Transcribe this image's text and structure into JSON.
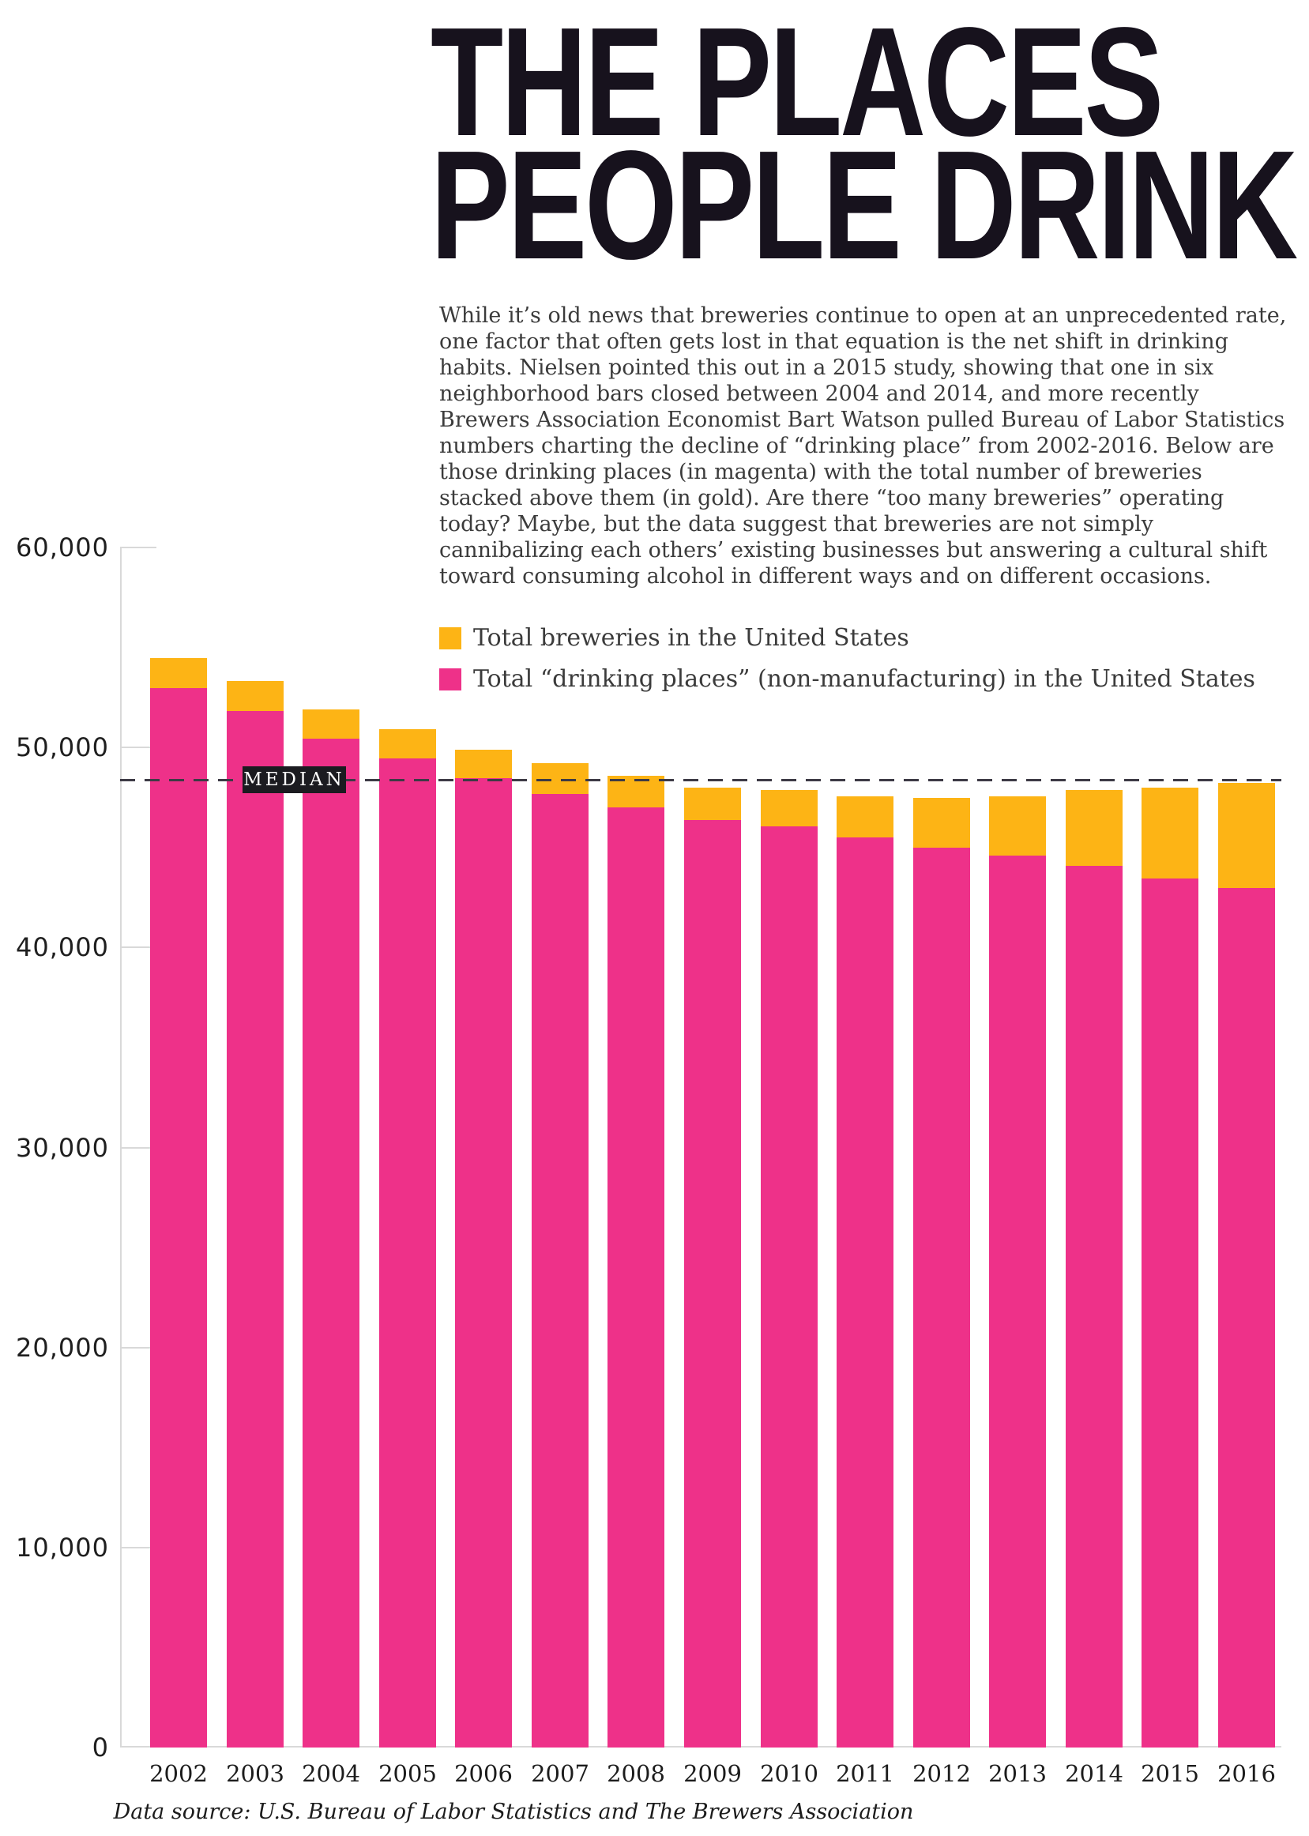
{
  "header": {
    "title_line1": "THE PLACES",
    "title_line2": "PEOPLE DRINK",
    "intro": "While it’s old news that breweries continue to open at an unprecedented rate, one factor that often gets lost in that equation is the net shift in drinking habits. Nielsen pointed this out in a 2015 study, showing that one in six neighborhood bars closed between 2004 and 2014, and more recently Brewers Association Economist Bart Watson pulled Bureau of Labor Statistics numbers charting the decline of “drinking place” from 2002-2016. Below are those drinking places (in magenta) with the total number of breweries stacked above them (in gold). Are there “too many breweries” operating today? Maybe, but the data suggest that breweries are not simply cannibalizing each others’ existing businesses but answering a cultural shift toward consuming alcohol in different ways and on different occasions."
  },
  "legend": {
    "items": [
      {
        "label": "Total breweries in the United States",
        "color": "#FDB415"
      },
      {
        "label": "Total “drinking places” (non-manufacturing) in the United States",
        "color": "#EE3189"
      }
    ]
  },
  "chart_data": {
    "type": "bar",
    "stacked": true,
    "title": "The Places People Drink",
    "xlabel": "",
    "ylabel": "",
    "categories": [
      "2002",
      "2003",
      "2004",
      "2005",
      "2006",
      "2007",
      "2008",
      "2009",
      "2010",
      "2011",
      "2012",
      "2013",
      "2014",
      "2015",
      "2016"
    ],
    "series": [
      {
        "name": "Total “drinking places” (non-manufacturing) in the United States",
        "color": "#EE3189",
        "values": [
          52950,
          51820,
          50430,
          49450,
          48460,
          47670,
          46990,
          46370,
          46050,
          45500,
          44980,
          44590,
          44080,
          43440,
          42970
        ]
      },
      {
        "name": "Total breweries in the United States",
        "color": "#FDB415",
        "values": [
          1510,
          1500,
          1460,
          1450,
          1420,
          1540,
          1580,
          1620,
          1820,
          2050,
          2490,
          2960,
          3790,
          4550,
          5250
        ]
      }
    ],
    "ylim": [
      0,
      60000
    ],
    "yticks": [
      0,
      10000,
      20000,
      30000,
      40000,
      50000,
      60000
    ],
    "ytick_labels": [
      "0",
      "10,000",
      "20,000",
      "30,000",
      "40,000",
      "50,000",
      "60,000"
    ],
    "median": {
      "label": "MEDIAN",
      "value": 48350
    },
    "grid": "off",
    "legend_position": "top-right-above-plot"
  },
  "footer": {
    "source": "Data source: U.S. Bureau of Labor Statistics and The Brewers Association"
  }
}
